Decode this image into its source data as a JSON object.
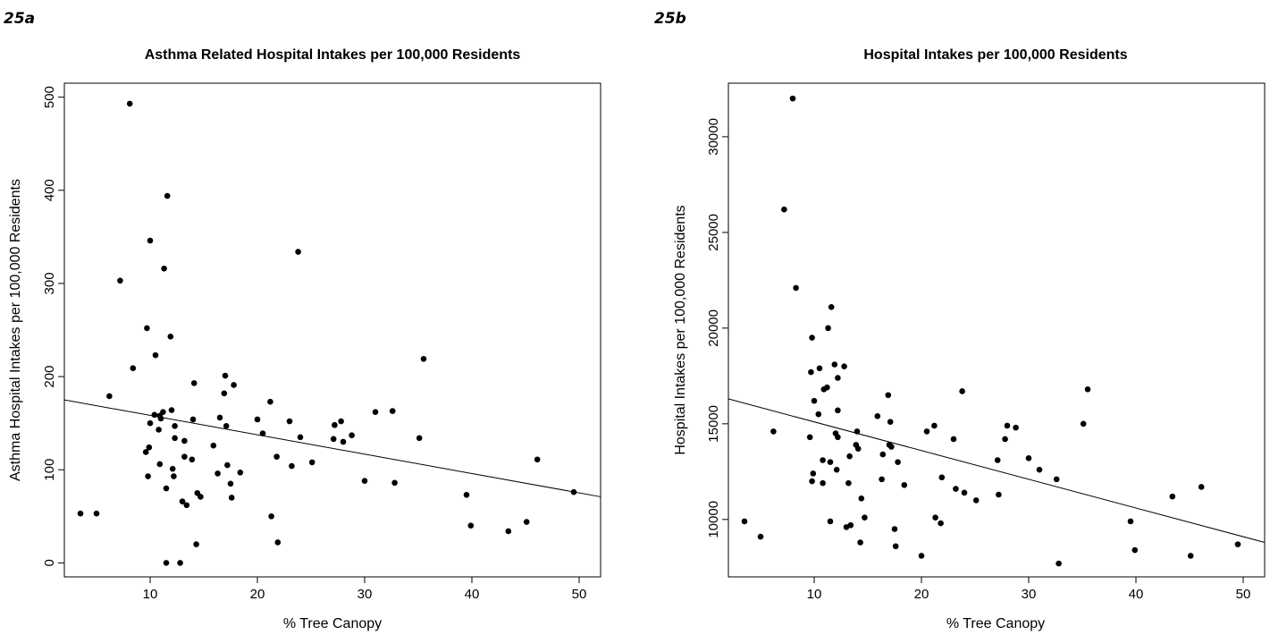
{
  "chart_data": [
    {
      "type": "scatter",
      "panel_label": "25a",
      "title": "Asthma Related Hospital Intakes per 100,000 Residents",
      "xlabel": "% Tree Canopy",
      "ylabel": "Asthma Hospital Intakes per 100,000 Residents",
      "xlim": [
        2,
        52
      ],
      "ylim": [
        -15,
        515
      ],
      "xticks": [
        10,
        20,
        30,
        40,
        50
      ],
      "yticks": [
        0,
        100,
        200,
        300,
        400,
        500
      ],
      "grid": false,
      "trendline": {
        "x": [
          2,
          52
        ],
        "y": [
          175,
          71
        ]
      },
      "points": [
        [
          3.5,
          53
        ],
        [
          5,
          53
        ],
        [
          6.2,
          179
        ],
        [
          7.2,
          303
        ],
        [
          8.1,
          493
        ],
        [
          8.4,
          209
        ],
        [
          9.6,
          119
        ],
        [
          9.7,
          252
        ],
        [
          9.8,
          93
        ],
        [
          9.9,
          124
        ],
        [
          10,
          150
        ],
        [
          10,
          346
        ],
        [
          10.4,
          159
        ],
        [
          10.5,
          223
        ],
        [
          10.8,
          143
        ],
        [
          10.9,
          158
        ],
        [
          10.9,
          106
        ],
        [
          11,
          155
        ],
        [
          11.2,
          162
        ],
        [
          11.3,
          316
        ],
        [
          11.5,
          80
        ],
        [
          11.5,
          0
        ],
        [
          11.6,
          394
        ],
        [
          11.9,
          243
        ],
        [
          12,
          164
        ],
        [
          12.1,
          101
        ],
        [
          12.2,
          93
        ],
        [
          12.3,
          147
        ],
        [
          12.3,
          134
        ],
        [
          12.8,
          0
        ],
        [
          13,
          66
        ],
        [
          13.2,
          114
        ],
        [
          13.2,
          131
        ],
        [
          13.4,
          62
        ],
        [
          13.9,
          111
        ],
        [
          14,
          154
        ],
        [
          14.1,
          193
        ],
        [
          14.3,
          20
        ],
        [
          14.4,
          75
        ],
        [
          14.7,
          71
        ],
        [
          15.9,
          126
        ],
        [
          16.3,
          96
        ],
        [
          16.5,
          156
        ],
        [
          16.9,
          182
        ],
        [
          17,
          201
        ],
        [
          17.1,
          147
        ],
        [
          17.2,
          105
        ],
        [
          17.5,
          85
        ],
        [
          17.6,
          70
        ],
        [
          17.8,
          191
        ],
        [
          18.4,
          97
        ],
        [
          20,
          154
        ],
        [
          20.5,
          139
        ],
        [
          21.2,
          173
        ],
        [
          21.3,
          50
        ],
        [
          21.8,
          114
        ],
        [
          21.9,
          22
        ],
        [
          23,
          152
        ],
        [
          23.2,
          104
        ],
        [
          23.8,
          334
        ],
        [
          24,
          135
        ],
        [
          25.1,
          108
        ],
        [
          27.1,
          133
        ],
        [
          27.2,
          148
        ],
        [
          27.8,
          152
        ],
        [
          28,
          130
        ],
        [
          28.8,
          137
        ],
        [
          30,
          88
        ],
        [
          31,
          162
        ],
        [
          32.6,
          163
        ],
        [
          32.8,
          86
        ],
        [
          35.1,
          134
        ],
        [
          35.5,
          219
        ],
        [
          39.5,
          73
        ],
        [
          39.9,
          40
        ],
        [
          43.4,
          34
        ],
        [
          45.1,
          44
        ],
        [
          46.1,
          111
        ],
        [
          49.5,
          76
        ]
      ]
    },
    {
      "type": "scatter",
      "panel_label": "25b",
      "title": "Hospital Intakes per 100,000 Residents",
      "xlabel": "% Tree Canopy",
      "ylabel": "Hospital Intakes per 100,000 Residents",
      "xlim": [
        2,
        52
      ],
      "ylim": [
        7000,
        32800
      ],
      "xticks": [
        10,
        20,
        30,
        40,
        50
      ],
      "yticks": [
        10000,
        15000,
        20000,
        25000,
        30000
      ],
      "grid": false,
      "trendline": {
        "x": [
          2,
          52
        ],
        "y": [
          16300,
          8800
        ]
      },
      "points": [
        [
          3.5,
          9900
        ],
        [
          5,
          9100
        ],
        [
          6.2,
          14600
        ],
        [
          7.2,
          26200
        ],
        [
          8,
          32000
        ],
        [
          8.3,
          22100
        ],
        [
          9.6,
          14300
        ],
        [
          9.7,
          17700
        ],
        [
          9.8,
          12000
        ],
        [
          9.8,
          19500
        ],
        [
          9.9,
          12400
        ],
        [
          10,
          16200
        ],
        [
          10.4,
          15500
        ],
        [
          10.5,
          17900
        ],
        [
          10.8,
          13100
        ],
        [
          10.8,
          11900
        ],
        [
          10.9,
          16800
        ],
        [
          11.2,
          16900
        ],
        [
          11.3,
          20000
        ],
        [
          11.5,
          13000
        ],
        [
          11.5,
          9900
        ],
        [
          11.6,
          21100
        ],
        [
          11.9,
          18100
        ],
        [
          12,
          14500
        ],
        [
          12.1,
          12600
        ],
        [
          12.2,
          14300
        ],
        [
          12.2,
          17400
        ],
        [
          12.2,
          15700
        ],
        [
          12.8,
          18000
        ],
        [
          13,
          9600
        ],
        [
          13.2,
          11900
        ],
        [
          13.3,
          13300
        ],
        [
          13.4,
          9700
        ],
        [
          13.9,
          13900
        ],
        [
          14,
          14600
        ],
        [
          14.1,
          13700
        ],
        [
          14.3,
          8800
        ],
        [
          14.4,
          11100
        ],
        [
          14.7,
          10100
        ],
        [
          15.9,
          15400
        ],
        [
          16.3,
          12100
        ],
        [
          16.4,
          13400
        ],
        [
          16.9,
          16500
        ],
        [
          17,
          13900
        ],
        [
          17.1,
          15100
        ],
        [
          17.2,
          13800
        ],
        [
          17.5,
          9500
        ],
        [
          17.6,
          8600
        ],
        [
          17.8,
          13000
        ],
        [
          18.4,
          11800
        ],
        [
          20,
          8100
        ],
        [
          20.5,
          14600
        ],
        [
          21.2,
          14900
        ],
        [
          21.3,
          10100
        ],
        [
          21.8,
          9800
        ],
        [
          21.9,
          12200
        ],
        [
          23,
          14200
        ],
        [
          23.2,
          11600
        ],
        [
          23.8,
          16700
        ],
        [
          24,
          11400
        ],
        [
          25.1,
          11000
        ],
        [
          27.1,
          13100
        ],
        [
          27.2,
          11300
        ],
        [
          27.8,
          14200
        ],
        [
          28,
          14900
        ],
        [
          28.8,
          14800
        ],
        [
          30,
          13200
        ],
        [
          31,
          12600
        ],
        [
          32.6,
          12100
        ],
        [
          32.8,
          7700
        ],
        [
          35.1,
          15000
        ],
        [
          35.5,
          16800
        ],
        [
          39.5,
          9900
        ],
        [
          39.9,
          8400
        ],
        [
          43.4,
          11200
        ],
        [
          45.1,
          8100
        ],
        [
          46.1,
          11700
        ],
        [
          49.5,
          8700
        ]
      ]
    }
  ]
}
